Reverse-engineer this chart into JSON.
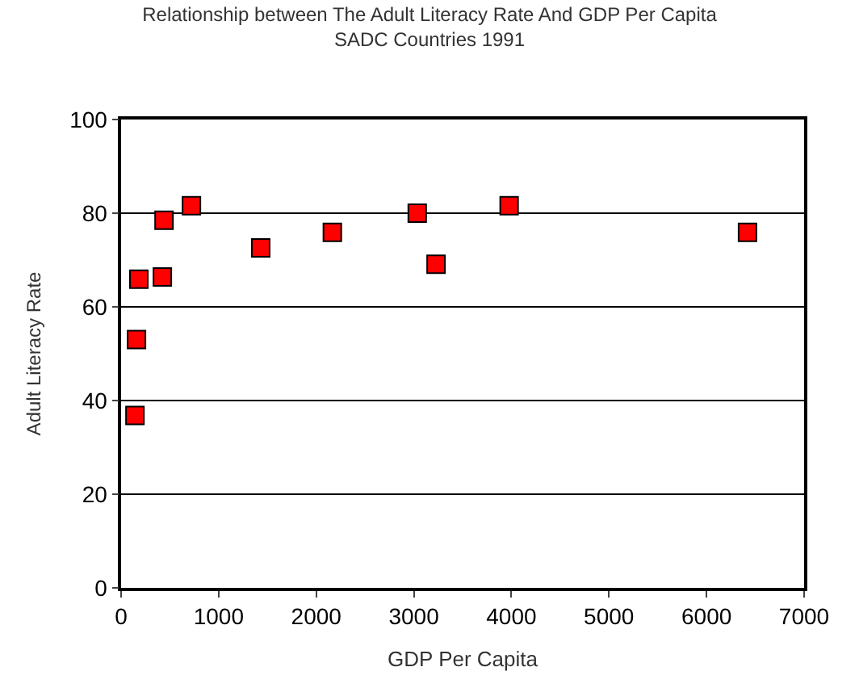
{
  "chart_data": {
    "type": "scatter",
    "title": "Relationship between The Adult Literacy Rate And GDP Per Capita",
    "subtitle": "SADC Countries 1991",
    "xlabel": "GDP Per Capita",
    "ylabel": "Adult Literacy Rate",
    "x": [
      142,
      158,
      182,
      423,
      440,
      721,
      1431,
      2165,
      3035,
      3228,
      3977,
      6420
    ],
    "series": [
      {
        "color": "#ff0000",
        "values": [
          36.8,
          53,
          65.9,
          66.4,
          78.5,
          81.6,
          72.6,
          75.9,
          80,
          69.1,
          81.6,
          75.9
        ]
      }
    ],
    "xlim": [
      0,
      7000
    ],
    "xticks": [
      0,
      1000,
      2000,
      3000,
      4000,
      5000,
      6000,
      7000
    ],
    "ylim": [
      0,
      100
    ],
    "yticks": [
      0,
      20,
      40,
      60,
      80,
      100
    ],
    "grid": "y",
    "legend": false,
    "marker": "square"
  }
}
